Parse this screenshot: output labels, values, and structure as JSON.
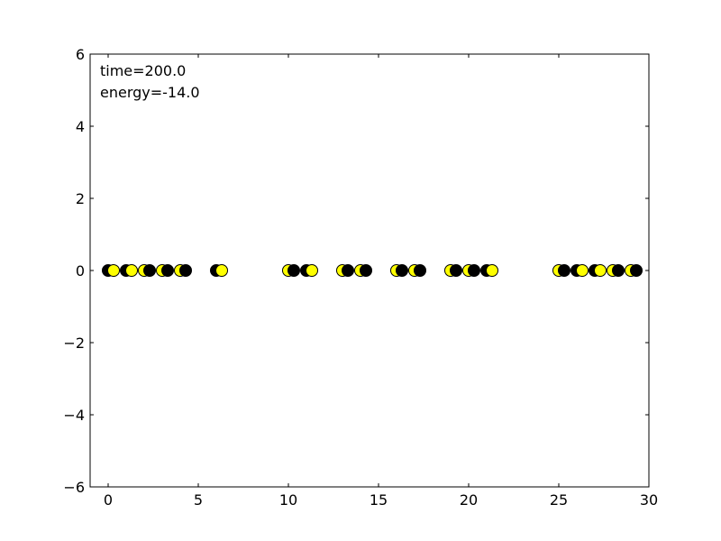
{
  "chart_data": {
    "type": "scatter",
    "title": "",
    "xlabel": "",
    "ylabel": "",
    "xlim": [
      -1,
      30
    ],
    "ylim": [
      -6,
      6
    ],
    "x_ticks": [
      0,
      5,
      10,
      15,
      20,
      25,
      30
    ],
    "x_tick_labels": [
      "0",
      "5",
      "10",
      "15",
      "20",
      "25",
      "30"
    ],
    "y_ticks": [
      -6,
      -4,
      -2,
      0,
      2,
      4,
      6
    ],
    "y_tick_labels": [
      "−6",
      "−4",
      "−2",
      "0",
      "2",
      "4",
      "6"
    ],
    "grid": false,
    "annotations": [
      {
        "text": "time=200.0"
      },
      {
        "text": "energy=-14.0"
      }
    ],
    "colors": {
      "yellow": "#ffff00",
      "black": "#000000",
      "edge": "#000000"
    },
    "series": [
      {
        "points": [
          [
            0.0,
            0,
            "black"
          ],
          [
            0.3,
            0,
            "yellow"
          ],
          [
            1.0,
            0,
            "black"
          ],
          [
            1.3,
            0,
            "yellow"
          ],
          [
            2.0,
            0,
            "yellow"
          ],
          [
            2.3,
            0,
            "black"
          ],
          [
            3.0,
            0,
            "yellow"
          ],
          [
            3.3,
            0,
            "black"
          ],
          [
            4.0,
            0,
            "yellow"
          ],
          [
            4.3,
            0,
            "black"
          ],
          [
            6.0,
            0,
            "black"
          ],
          [
            6.3,
            0,
            "yellow"
          ],
          [
            10.0,
            0,
            "yellow"
          ],
          [
            10.3,
            0,
            "black"
          ],
          [
            11.0,
            0,
            "black"
          ],
          [
            11.3,
            0,
            "yellow"
          ],
          [
            13.0,
            0,
            "yellow"
          ],
          [
            13.3,
            0,
            "black"
          ],
          [
            14.0,
            0,
            "yellow"
          ],
          [
            14.3,
            0,
            "black"
          ],
          [
            16.0,
            0,
            "yellow"
          ],
          [
            16.3,
            0,
            "black"
          ],
          [
            17.0,
            0,
            "yellow"
          ],
          [
            17.3,
            0,
            "black"
          ],
          [
            19.0,
            0,
            "yellow"
          ],
          [
            19.3,
            0,
            "black"
          ],
          [
            20.0,
            0,
            "yellow"
          ],
          [
            20.3,
            0,
            "black"
          ],
          [
            21.0,
            0,
            "black"
          ],
          [
            21.3,
            0,
            "yellow"
          ],
          [
            25.0,
            0,
            "yellow"
          ],
          [
            25.3,
            0,
            "black"
          ],
          [
            26.0,
            0,
            "black"
          ],
          [
            26.3,
            0,
            "yellow"
          ],
          [
            27.0,
            0,
            "black"
          ],
          [
            27.3,
            0,
            "yellow"
          ],
          [
            28.0,
            0,
            "yellow"
          ],
          [
            28.3,
            0,
            "black"
          ],
          [
            29.0,
            0,
            "yellow"
          ],
          [
            29.3,
            0,
            "black"
          ]
        ]
      }
    ]
  }
}
